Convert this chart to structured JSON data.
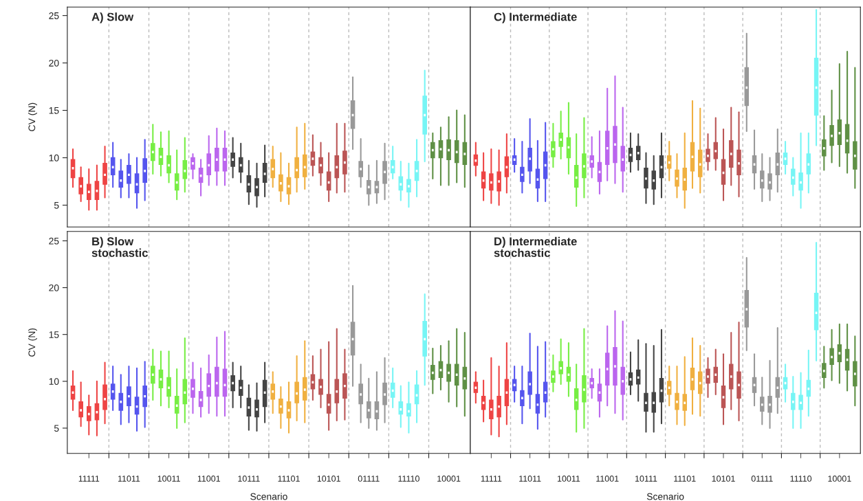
{
  "chart_data": [
    {
      "type": "box",
      "title": "A) Slow",
      "ylabel": "CV (N)",
      "ylim": [
        2.7,
        25.9
      ],
      "yticks": [
        5,
        10,
        15,
        20,
        25
      ],
      "tick_labels": "y",
      "grid": "x",
      "legend": false,
      "categories": [
        null,
        null,
        "11111",
        null,
        null,
        null,
        null,
        "11011",
        null,
        null,
        null,
        null,
        "10011",
        null,
        null,
        null,
        null,
        "11001",
        null,
        null,
        null,
        null,
        "10111",
        null,
        null,
        null,
        null,
        "11101",
        null,
        null,
        null,
        null,
        "10101",
        null,
        null,
        null,
        null,
        "01111",
        null,
        null,
        null,
        null,
        "11110",
        null,
        null,
        null,
        null,
        "10001",
        null,
        null
      ],
      "colors": [
        "#ee4444",
        "#ee4444",
        "#ee4444",
        "#ee4444",
        "#ee4444",
        "#5555ee",
        "#5555ee",
        "#5555ee",
        "#5555ee",
        "#5555ee",
        "#77ee44",
        "#77ee44",
        "#77ee44",
        "#77ee44",
        "#77ee44",
        "#bb66ee",
        "#bb66ee",
        "#bb66ee",
        "#bb66ee",
        "#bb66ee",
        "#444444",
        "#444444",
        "#444444",
        "#444444",
        "#444444",
        "#f0b040",
        "#f0b040",
        "#f0b040",
        "#f0b040",
        "#f0b040",
        "#bb5555",
        "#bb5555",
        "#bb5555",
        "#bb5555",
        "#bb5555",
        "#999999",
        "#999999",
        "#999999",
        "#999999",
        "#999999",
        "#77f5f5",
        "#77f5f5",
        "#77f5f5",
        "#77f5f5",
        "#77f5f5",
        "#5f9045",
        "#5f9045",
        "#5f9045",
        "#5f9045",
        "#5f9045"
      ],
      "boxes": [
        {
          "low": 6.9,
          "q1": 7.9,
          "median": 8.9,
          "q3": 9.8,
          "high": 10.9
        },
        {
          "low": 5.4,
          "q1": 6.2,
          "median": 7.0,
          "q3": 7.9,
          "high": 9.0
        },
        {
          "low": 4.5,
          "q1": 5.6,
          "median": 6.4,
          "q3": 7.2,
          "high": 8.8
        },
        {
          "low": 4.5,
          "q1": 5.6,
          "median": 6.5,
          "q3": 7.5,
          "high": 9.2
        },
        {
          "low": 5.8,
          "q1": 7.2,
          "median": 8.2,
          "q3": 9.4,
          "high": 11.2
        },
        {
          "low": 6.9,
          "q1": 8.2,
          "median": 9.0,
          "q3": 10.0,
          "high": 11.6
        },
        {
          "low": 5.8,
          "q1": 6.9,
          "median": 7.6,
          "q3": 8.6,
          "high": 9.8
        },
        {
          "low": 5.8,
          "q1": 7.3,
          "median": 8.2,
          "q3": 9.2,
          "high": 10.4
        },
        {
          "low": 4.7,
          "q1": 6.3,
          "median": 7.2,
          "q3": 8.3,
          "high": 10.0
        },
        {
          "low": 5.5,
          "q1": 7.4,
          "median": 8.6,
          "q3": 9.9,
          "high": 11.9
        },
        {
          "low": 8.3,
          "q1": 9.7,
          "median": 10.6,
          "q3": 11.5,
          "high": 13.5
        },
        {
          "low": 8.1,
          "q1": 9.3,
          "median": 10.1,
          "q3": 11.0,
          "high": 12.7
        },
        {
          "low": 7.4,
          "q1": 8.4,
          "median": 9.2,
          "q3": 10.2,
          "high": 12.8
        },
        {
          "low": 5.6,
          "q1": 6.6,
          "median": 7.4,
          "q3": 8.3,
          "high": 10.8
        },
        {
          "low": 6.4,
          "q1": 7.8,
          "median": 8.6,
          "q3": 9.7,
          "high": 12.1
        },
        {
          "low": 7.8,
          "q1": 8.8,
          "median": 9.4,
          "q3": 10.0,
          "high": 10.4
        },
        {
          "low": 6.0,
          "q1": 7.4,
          "median": 8.1,
          "q3": 8.9,
          "high": 9.8
        },
        {
          "low": 7.1,
          "q1": 8.2,
          "median": 9.2,
          "q3": 10.4,
          "high": 12.3
        },
        {
          "low": 7.1,
          "q1": 8.6,
          "median": 9.8,
          "q3": 11.0,
          "high": 13.1
        },
        {
          "low": 7.1,
          "q1": 8.6,
          "median": 9.8,
          "q3": 11.0,
          "high": 12.8
        },
        {
          "low": 7.9,
          "q1": 9.1,
          "median": 9.8,
          "q3": 10.5,
          "high": 12.1
        },
        {
          "low": 7.4,
          "q1": 8.5,
          "median": 9.2,
          "q3": 10.0,
          "high": 11.5
        },
        {
          "low": 5.1,
          "q1": 6.4,
          "median": 7.2,
          "q3": 8.1,
          "high": 9.7
        },
        {
          "low": 4.8,
          "q1": 6.0,
          "median": 6.9,
          "q3": 7.8,
          "high": 9.4
        },
        {
          "low": 5.9,
          "q1": 7.4,
          "median": 8.3,
          "q3": 9.4,
          "high": 11.3
        },
        {
          "low": 6.9,
          "q1": 7.9,
          "median": 8.8,
          "q3": 9.8,
          "high": 11.2
        },
        {
          "low": 5.4,
          "q1": 6.5,
          "median": 7.3,
          "q3": 8.2,
          "high": 10.5
        },
        {
          "low": 5.1,
          "q1": 6.2,
          "median": 7.0,
          "q3": 7.9,
          "high": 9.4
        },
        {
          "low": 6.4,
          "q1": 7.9,
          "median": 8.7,
          "q3": 10.0,
          "high": 13.2
        },
        {
          "low": 6.7,
          "q1": 8.0,
          "median": 9.0,
          "q3": 10.3,
          "high": 13.6
        },
        {
          "low": 8.1,
          "q1": 9.2,
          "median": 9.9,
          "q3": 10.6,
          "high": 12.4
        },
        {
          "low": 7.1,
          "q1": 8.4,
          "median": 9.2,
          "q3": 10.0,
          "high": 11.6
        },
        {
          "low": 5.4,
          "q1": 6.6,
          "median": 7.4,
          "q3": 8.5,
          "high": 10.5
        },
        {
          "low": 6.3,
          "q1": 7.9,
          "median": 9.0,
          "q3": 10.2,
          "high": 13.6
        },
        {
          "low": 6.4,
          "q1": 8.3,
          "median": 9.5,
          "q3": 10.7,
          "high": 13.6
        },
        {
          "low": 10.9,
          "q1": 13.1,
          "median": 14.5,
          "q3": 16.0,
          "high": 18.5
        },
        {
          "low": 6.9,
          "q1": 8.0,
          "median": 8.8,
          "q3": 9.6,
          "high": 12.0
        },
        {
          "low": 5.0,
          "q1": 6.2,
          "median": 6.9,
          "q3": 7.6,
          "high": 9.2
        },
        {
          "low": 5.2,
          "q1": 6.3,
          "median": 6.9,
          "q3": 7.5,
          "high": 9.7
        },
        {
          "low": 5.6,
          "q1": 7.3,
          "median": 8.5,
          "q3": 9.6,
          "high": 11.5
        },
        {
          "low": 7.8,
          "q1": 8.4,
          "median": 9.0,
          "q3": 9.7,
          "high": 11.2
        },
        {
          "low": 5.5,
          "q1": 6.6,
          "median": 7.2,
          "q3": 8.0,
          "high": 9.6
        },
        {
          "low": 4.8,
          "q1": 6.4,
          "median": 7.0,
          "q3": 7.7,
          "high": 9.4
        },
        {
          "low": 5.9,
          "q1": 7.6,
          "median": 8.6,
          "q3": 9.6,
          "high": 11.9
        },
        {
          "low": 9.6,
          "q1": 12.5,
          "median": 14.5,
          "q3": 16.5,
          "high": 19.2
        },
        {
          "low": 7.8,
          "q1": 10.0,
          "median": 10.8,
          "q3": 11.6,
          "high": 12.6
        },
        {
          "low": 7.1,
          "q1": 10.0,
          "median": 10.9,
          "q3": 11.8,
          "high": 13.2
        },
        {
          "low": 7.1,
          "q1": 9.8,
          "median": 10.8,
          "q3": 11.9,
          "high": 14.3
        },
        {
          "low": 7.4,
          "q1": 9.5,
          "median": 10.6,
          "q3": 11.8,
          "high": 15.0
        },
        {
          "low": 6.9,
          "q1": 9.3,
          "median": 10.4,
          "q3": 11.6,
          "high": 14.5
        }
      ]
    },
    {
      "type": "box",
      "title": "B) Slow\nstochastic",
      "ylabel": "CV (N)",
      "xlabel": "Scenario",
      "ylim": [
        2.3,
        26.0
      ],
      "yticks": [
        5,
        10,
        15,
        20,
        25
      ],
      "grid": "x",
      "legend": false,
      "categories": [
        null,
        null,
        "11111",
        null,
        null,
        null,
        null,
        "11011",
        null,
        null,
        null,
        null,
        "10011",
        null,
        null,
        null,
        null,
        "11001",
        null,
        null,
        null,
        null,
        "10111",
        null,
        null,
        null,
        null,
        "11101",
        null,
        null,
        null,
        null,
        "10101",
        null,
        null,
        null,
        null,
        "01111",
        null,
        null,
        null,
        null,
        "11110",
        null,
        null,
        null,
        null,
        "10001",
        null,
        null
      ],
      "colors": [
        "#ee4444",
        "#ee4444",
        "#ee4444",
        "#ee4444",
        "#ee4444",
        "#5555ee",
        "#5555ee",
        "#5555ee",
        "#5555ee",
        "#5555ee",
        "#77ee44",
        "#77ee44",
        "#77ee44",
        "#77ee44",
        "#77ee44",
        "#bb66ee",
        "#bb66ee",
        "#bb66ee",
        "#bb66ee",
        "#bb66ee",
        "#444444",
        "#444444",
        "#444444",
        "#444444",
        "#444444",
        "#f0b040",
        "#f0b040",
        "#f0b040",
        "#f0b040",
        "#f0b040",
        "#bb5555",
        "#bb5555",
        "#bb5555",
        "#bb5555",
        "#bb5555",
        "#999999",
        "#999999",
        "#999999",
        "#999999",
        "#999999",
        "#77f5f5",
        "#77f5f5",
        "#77f5f5",
        "#77f5f5",
        "#77f5f5",
        "#5f9045",
        "#5f9045",
        "#5f9045",
        "#5f9045",
        "#5f9045"
      ],
      "boxes": [
        {
          "low": 6.9,
          "q1": 8.1,
          "median": 8.8,
          "q3": 9.5,
          "high": 11.1
        },
        {
          "low": 5.2,
          "q1": 6.2,
          "median": 6.9,
          "q3": 7.8,
          "high": 9.9
        },
        {
          "low": 4.3,
          "q1": 5.8,
          "median": 6.5,
          "q3": 7.3,
          "high": 8.5
        },
        {
          "low": 4.2,
          "q1": 5.9,
          "median": 6.7,
          "q3": 7.6,
          "high": 10.0
        },
        {
          "low": 5.5,
          "q1": 7.0,
          "median": 8.1,
          "q3": 9.6,
          "high": 12.0
        },
        {
          "low": 6.9,
          "q1": 8.1,
          "median": 8.9,
          "q3": 9.7,
          "high": 11.6
        },
        {
          "low": 5.4,
          "q1": 6.9,
          "median": 7.8,
          "q3": 8.7,
          "high": 10.7
        },
        {
          "low": 5.6,
          "q1": 7.4,
          "median": 8.4,
          "q3": 9.4,
          "high": 11.6
        },
        {
          "low": 4.7,
          "q1": 6.5,
          "median": 7.3,
          "q3": 8.3,
          "high": 11.4
        },
        {
          "low": 5.1,
          "q1": 7.3,
          "median": 8.4,
          "q3": 9.5,
          "high": 12.1
        },
        {
          "low": 8.0,
          "q1": 9.8,
          "median": 10.7,
          "q3": 11.6,
          "high": 13.4
        },
        {
          "low": 7.4,
          "q1": 9.3,
          "median": 10.2,
          "q3": 11.2,
          "high": 13.2
        },
        {
          "low": 7.2,
          "q1": 8.4,
          "median": 9.3,
          "q3": 10.4,
          "high": 13.2
        },
        {
          "low": 5.0,
          "q1": 6.6,
          "median": 7.4,
          "q3": 8.4,
          "high": 11.3
        },
        {
          "low": 5.6,
          "q1": 7.6,
          "median": 8.8,
          "q3": 10.2,
          "high": 14.6
        },
        {
          "low": 6.6,
          "q1": 8.3,
          "median": 9.2,
          "q3": 10.2,
          "high": 12.0
        },
        {
          "low": 6.2,
          "q1": 7.3,
          "median": 8.0,
          "q3": 8.9,
          "high": 11.4
        },
        {
          "low": 6.6,
          "q1": 8.4,
          "median": 9.5,
          "q3": 10.8,
          "high": 12.8
        },
        {
          "low": 6.3,
          "q1": 8.4,
          "median": 9.8,
          "q3": 11.5,
          "high": 14.7
        },
        {
          "low": 6.3,
          "q1": 8.4,
          "median": 9.6,
          "q3": 11.3,
          "high": 15.3
        },
        {
          "low": 7.2,
          "q1": 9.0,
          "median": 9.8,
          "q3": 10.6,
          "high": 12.0
        },
        {
          "low": 7.2,
          "q1": 8.5,
          "median": 9.3,
          "q3": 10.1,
          "high": 11.6
        },
        {
          "low": 4.8,
          "q1": 6.3,
          "median": 7.2,
          "q3": 8.2,
          "high": 9.6
        },
        {
          "low": 4.7,
          "q1": 6.2,
          "median": 7.0,
          "q3": 8.0,
          "high": 9.8
        },
        {
          "low": 5.6,
          "q1": 7.3,
          "median": 8.8,
          "q3": 10.1,
          "high": 12.0
        },
        {
          "low": 6.6,
          "q1": 8.1,
          "median": 8.9,
          "q3": 9.7,
          "high": 11.0
        },
        {
          "low": 5.0,
          "q1": 6.6,
          "median": 7.3,
          "q3": 8.1,
          "high": 9.4
        },
        {
          "low": 4.5,
          "q1": 6.1,
          "median": 6.9,
          "q3": 7.8,
          "high": 9.9
        },
        {
          "low": 5.8,
          "q1": 7.7,
          "median": 8.7,
          "q3": 9.9,
          "high": 12.7
        },
        {
          "low": 5.6,
          "q1": 8.0,
          "median": 9.1,
          "q3": 10.4,
          "high": 14.3
        },
        {
          "low": 8.0,
          "q1": 9.2,
          "median": 9.9,
          "q3": 10.7,
          "high": 12.7
        },
        {
          "low": 7.2,
          "q1": 8.6,
          "median": 9.4,
          "q3": 10.2,
          "high": 13.4
        },
        {
          "low": 4.8,
          "q1": 6.6,
          "median": 7.5,
          "q3": 8.6,
          "high": 14.2
        },
        {
          "low": 5.8,
          "q1": 7.7,
          "median": 8.9,
          "q3": 10.2,
          "high": 15.6
        },
        {
          "low": 5.9,
          "q1": 8.2,
          "median": 9.5,
          "q3": 10.8,
          "high": 13.4
        },
        {
          "low": 9.5,
          "q1": 12.8,
          "median": 14.5,
          "q3": 16.3,
          "high": 20.2
        },
        {
          "low": 5.6,
          "q1": 7.6,
          "median": 8.6,
          "q3": 9.7,
          "high": 11.8
        },
        {
          "low": 5.0,
          "q1": 6.1,
          "median": 6.9,
          "q3": 7.8,
          "high": 10.3
        },
        {
          "low": 4.8,
          "q1": 6.0,
          "median": 6.8,
          "q3": 7.8,
          "high": 11.0
        },
        {
          "low": 5.6,
          "q1": 7.5,
          "median": 8.6,
          "q3": 9.8,
          "high": 12.5
        },
        {
          "low": 7.2,
          "q1": 8.3,
          "median": 9.0,
          "q3": 9.8,
          "high": 11.4
        },
        {
          "low": 5.1,
          "q1": 6.5,
          "median": 7.0,
          "q3": 7.8,
          "high": 9.5
        },
        {
          "low": 4.5,
          "q1": 6.3,
          "median": 6.8,
          "q3": 7.6,
          "high": 9.9
        },
        {
          "low": 5.6,
          "q1": 7.6,
          "median": 8.5,
          "q3": 9.6,
          "high": 11.1
        },
        {
          "low": 9.6,
          "q1": 12.7,
          "median": 14.5,
          "q3": 16.4,
          "high": 19.3
        },
        {
          "low": 8.7,
          "q1": 10.2,
          "median": 10.9,
          "q3": 11.7,
          "high": 13.5
        },
        {
          "low": 9.1,
          "q1": 10.4,
          "median": 11.2,
          "q3": 12.1,
          "high": 13.8
        },
        {
          "low": 7.8,
          "q1": 10.0,
          "median": 10.9,
          "q3": 11.8,
          "high": 14.3
        },
        {
          "low": 7.3,
          "q1": 9.6,
          "median": 10.7,
          "q3": 11.8,
          "high": 15.6
        },
        {
          "low": 6.3,
          "q1": 9.2,
          "median": 10.3,
          "q3": 11.5,
          "high": 15.2
        }
      ]
    },
    {
      "type": "box",
      "title": "C) Intermediate",
      "ylim": [
        2.7,
        25.9
      ],
      "yticks": [
        5,
        10,
        15,
        20,
        25
      ],
      "tick_labels": false,
      "grid": "x",
      "legend": false,
      "categories": [
        null,
        null,
        "11111",
        null,
        null,
        null,
        null,
        "11011",
        null,
        null,
        null,
        null,
        "10011",
        null,
        null,
        null,
        null,
        "11001",
        null,
        null,
        null,
        null,
        "10111",
        null,
        null,
        null,
        null,
        "11101",
        null,
        null,
        null,
        null,
        "10101",
        null,
        null,
        null,
        null,
        "01111",
        null,
        null,
        null,
        null,
        "11110",
        null,
        null,
        null,
        null,
        "10001",
        null,
        null
      ],
      "colors": [
        "#ee4444",
        "#ee4444",
        "#ee4444",
        "#ee4444",
        "#ee4444",
        "#5555ee",
        "#5555ee",
        "#5555ee",
        "#5555ee",
        "#5555ee",
        "#77ee44",
        "#77ee44",
        "#77ee44",
        "#77ee44",
        "#77ee44",
        "#bb66ee",
        "#bb66ee",
        "#bb66ee",
        "#bb66ee",
        "#bb66ee",
        "#444444",
        "#444444",
        "#444444",
        "#444444",
        "#444444",
        "#f0b040",
        "#f0b040",
        "#f0b040",
        "#f0b040",
        "#f0b040",
        "#bb5555",
        "#bb5555",
        "#bb5555",
        "#bb5555",
        "#bb5555",
        "#999999",
        "#999999",
        "#999999",
        "#999999",
        "#999999",
        "#77f5f5",
        "#77f5f5",
        "#77f5f5",
        "#77f5f5",
        "#77f5f5",
        "#5f9045",
        "#5f9045",
        "#5f9045",
        "#5f9045",
        "#5f9045"
      ],
      "boxes": [
        {
          "low": 8.1,
          "q1": 9.2,
          "median": 9.7,
          "q3": 10.3,
          "high": 11.6
        },
        {
          "low": 5.5,
          "q1": 6.8,
          "median": 7.6,
          "q3": 8.5,
          "high": 10.5
        },
        {
          "low": 5.2,
          "q1": 6.6,
          "median": 7.4,
          "q3": 8.3,
          "high": 10.9
        },
        {
          "low": 5.0,
          "q1": 6.5,
          "median": 7.5,
          "q3": 8.5,
          "high": 10.8
        },
        {
          "low": 6.3,
          "q1": 8.0,
          "median": 9.0,
          "q3": 10.1,
          "high": 12.5
        },
        {
          "low": 8.5,
          "q1": 9.3,
          "median": 9.8,
          "q3": 10.2,
          "high": 12.0
        },
        {
          "low": 6.3,
          "q1": 7.5,
          "median": 8.2,
          "q3": 9.0,
          "high": 11.7
        },
        {
          "low": 7.3,
          "q1": 8.6,
          "median": 9.9,
          "q3": 11.0,
          "high": 14.1
        },
        {
          "low": 5.4,
          "q1": 6.8,
          "median": 7.7,
          "q3": 8.8,
          "high": 11.8
        },
        {
          "low": 5.4,
          "q1": 7.8,
          "median": 9.2,
          "q3": 10.6,
          "high": 13.7
        },
        {
          "low": 9.0,
          "q1": 10.1,
          "median": 10.9,
          "q3": 11.7,
          "high": 13.6
        },
        {
          "low": 9.9,
          "q1": 11.2,
          "median": 11.9,
          "q3": 12.6,
          "high": 14.9
        },
        {
          "low": 8.3,
          "q1": 10.0,
          "median": 11.1,
          "q3": 12.1,
          "high": 15.8
        },
        {
          "low": 4.9,
          "q1": 6.9,
          "median": 7.9,
          "q3": 9.2,
          "high": 12.5
        },
        {
          "low": 5.8,
          "q1": 7.9,
          "median": 9.1,
          "q3": 10.4,
          "high": 14.2
        },
        {
          "low": 7.9,
          "q1": 9.0,
          "median": 9.6,
          "q3": 10.2,
          "high": 12.2
        },
        {
          "low": 6.2,
          "q1": 7.5,
          "median": 8.5,
          "q3": 9.5,
          "high": 12.8
        },
        {
          "low": 7.6,
          "q1": 9.3,
          "median": 11.0,
          "q3": 12.8,
          "high": 17.3
        },
        {
          "low": 7.3,
          "q1": 9.5,
          "median": 11.4,
          "q3": 13.3,
          "high": 18.6
        },
        {
          "low": 6.4,
          "q1": 8.6,
          "median": 9.8,
          "q3": 11.2,
          "high": 15.3
        },
        {
          "low": 8.5,
          "q1": 9.6,
          "median": 10.3,
          "q3": 11.0,
          "high": 12.6
        },
        {
          "low": 8.7,
          "q1": 9.8,
          "median": 10.5,
          "q3": 11.2,
          "high": 12.5
        },
        {
          "low": 5.2,
          "q1": 6.8,
          "median": 7.8,
          "q3": 8.9,
          "high": 10.5
        },
        {
          "low": 5.1,
          "q1": 6.7,
          "median": 7.6,
          "q3": 8.6,
          "high": 10.2
        },
        {
          "low": 5.8,
          "q1": 7.9,
          "median": 9.0,
          "q3": 10.2,
          "high": 12.6
        },
        {
          "low": 7.6,
          "q1": 8.9,
          "median": 9.5,
          "q3": 10.2,
          "high": 11.7
        },
        {
          "low": 5.8,
          "q1": 7.0,
          "median": 7.8,
          "q3": 8.7,
          "high": 10.4
        },
        {
          "low": 4.7,
          "q1": 6.6,
          "median": 7.7,
          "q3": 8.9,
          "high": 12.6
        },
        {
          "low": 6.8,
          "q1": 8.6,
          "median": 10.1,
          "q3": 11.6,
          "high": 16.0
        },
        {
          "low": 6.3,
          "q1": 8.0,
          "median": 9.3,
          "q3": 10.8,
          "high": 15.2
        },
        {
          "low": 8.7,
          "q1": 9.6,
          "median": 10.2,
          "q3": 10.9,
          "high": 12.5
        },
        {
          "low": 8.7,
          "q1": 9.9,
          "median": 10.7,
          "q3": 11.6,
          "high": 14.2
        },
        {
          "low": 5.5,
          "q1": 7.2,
          "median": 8.4,
          "q3": 9.8,
          "high": 13.0
        },
        {
          "low": 7.1,
          "q1": 9.0,
          "median": 10.4,
          "q3": 11.8,
          "high": 15.3
        },
        {
          "low": 5.9,
          "q1": 8.2,
          "median": 9.4,
          "q3": 10.8,
          "high": 14.8
        },
        {
          "low": 12.8,
          "q1": 15.5,
          "median": 17.4,
          "q3": 19.5,
          "high": 23.1
        },
        {
          "low": 6.7,
          "q1": 8.4,
          "median": 9.3,
          "q3": 10.2,
          "high": 12.9
        },
        {
          "low": 5.4,
          "q1": 6.8,
          "median": 7.6,
          "q3": 8.6,
          "high": 10.4
        },
        {
          "low": 5.5,
          "q1": 6.7,
          "median": 7.4,
          "q3": 8.3,
          "high": 10.0
        },
        {
          "low": 6.4,
          "q1": 8.2,
          "median": 9.3,
          "q3": 10.5,
          "high": 13.0
        },
        {
          "low": 8.3,
          "q1": 9.3,
          "median": 9.9,
          "q3": 10.5,
          "high": 11.7
        },
        {
          "low": 6.0,
          "q1": 7.2,
          "median": 7.9,
          "q3": 8.8,
          "high": 10.0
        },
        {
          "low": 4.7,
          "q1": 6.6,
          "median": 7.4,
          "q3": 8.4,
          "high": 12.6
        },
        {
          "low": 6.3,
          "q1": 8.3,
          "median": 9.3,
          "q3": 10.4,
          "high": 12.6
        },
        {
          "low": 11.3,
          "q1": 14.5,
          "median": 17.4,
          "q3": 20.5,
          "high": 25.6
        },
        {
          "low": 8.7,
          "q1": 10.2,
          "median": 11.0,
          "q3": 11.9,
          "high": 14.4
        },
        {
          "low": 9.5,
          "q1": 11.3,
          "median": 12.3,
          "q3": 13.4,
          "high": 17.1
        },
        {
          "low": 9.1,
          "q1": 11.4,
          "median": 12.6,
          "q3": 14.0,
          "high": 19.9
        },
        {
          "low": 8.4,
          "q1": 10.5,
          "median": 11.8,
          "q3": 13.5,
          "high": 21.2
        },
        {
          "low": 6.8,
          "q1": 8.8,
          "median": 10.2,
          "q3": 11.7,
          "high": 19.5
        }
      ]
    },
    {
      "type": "box",
      "title": "D) Intermediate\nstochastic",
      "xlabel": "Scenario",
      "ylim": [
        2.3,
        26.0
      ],
      "yticks": [
        5,
        10,
        15,
        20,
        25
      ],
      "tick_labels": "x",
      "grid": "x",
      "legend": false,
      "categories": [
        null,
        null,
        "11111",
        null,
        null,
        null,
        null,
        "11011",
        null,
        null,
        null,
        null,
        "10011",
        null,
        null,
        null,
        null,
        "11001",
        null,
        null,
        null,
        null,
        "10111",
        null,
        null,
        null,
        null,
        "11101",
        null,
        null,
        null,
        null,
        "10101",
        null,
        null,
        null,
        null,
        "01111",
        null,
        null,
        null,
        null,
        "11110",
        null,
        null,
        null,
        null,
        "10001",
        null,
        null
      ],
      "colors": [
        "#ee4444",
        "#ee4444",
        "#ee4444",
        "#ee4444",
        "#ee4444",
        "#5555ee",
        "#5555ee",
        "#5555ee",
        "#5555ee",
        "#5555ee",
        "#77ee44",
        "#77ee44",
        "#77ee44",
        "#77ee44",
        "#77ee44",
        "#bb66ee",
        "#bb66ee",
        "#bb66ee",
        "#bb66ee",
        "#bb66ee",
        "#444444",
        "#444444",
        "#444444",
        "#444444",
        "#444444",
        "#f0b040",
        "#f0b040",
        "#f0b040",
        "#f0b040",
        "#f0b040",
        "#bb5555",
        "#bb5555",
        "#bb5555",
        "#bb5555",
        "#bb5555",
        "#999999",
        "#999999",
        "#999999",
        "#999999",
        "#999999",
        "#77f5f5",
        "#77f5f5",
        "#77f5f5",
        "#77f5f5",
        "#77f5f5",
        "#5f9045",
        "#5f9045",
        "#5f9045",
        "#5f9045",
        "#5f9045"
      ],
      "boxes": [
        {
          "low": 7.7,
          "q1": 8.8,
          "median": 9.3,
          "q3": 9.9,
          "high": 11.0
        },
        {
          "low": 5.7,
          "q1": 7.0,
          "median": 7.7,
          "q3": 8.4,
          "high": 10.1
        },
        {
          "low": 4.3,
          "q1": 6.0,
          "median": 7.0,
          "q3": 8.0,
          "high": 12.5
        },
        {
          "low": 4.1,
          "q1": 6.2,
          "median": 7.3,
          "q3": 8.4,
          "high": 11.6
        },
        {
          "low": 5.4,
          "q1": 7.4,
          "median": 8.8,
          "q3": 10.2,
          "high": 14.1
        },
        {
          "low": 7.8,
          "q1": 9.0,
          "median": 9.6,
          "q3": 10.2,
          "high": 11.6
        },
        {
          "low": 5.5,
          "q1": 7.4,
          "median": 8.2,
          "q3": 9.0,
          "high": 11.6
        },
        {
          "low": 7.1,
          "q1": 8.6,
          "median": 9.7,
          "q3": 11.0,
          "high": 15.1
        },
        {
          "low": 4.9,
          "q1": 6.6,
          "median": 7.5,
          "q3": 8.6,
          "high": 13.7
        },
        {
          "low": 6.2,
          "q1": 7.8,
          "median": 8.8,
          "q3": 9.9,
          "high": 14.2
        },
        {
          "low": 8.9,
          "q1": 9.9,
          "median": 10.5,
          "q3": 11.1,
          "high": 12.8
        },
        {
          "low": 9.7,
          "q1": 10.8,
          "median": 11.4,
          "q3": 12.1,
          "high": 14.5
        },
        {
          "low": 8.4,
          "q1": 10.0,
          "median": 10.7,
          "q3": 11.5,
          "high": 14.1
        },
        {
          "low": 4.6,
          "q1": 7.0,
          "median": 8.0,
          "q3": 9.2,
          "high": 11.8
        },
        {
          "low": 5.0,
          "q1": 7.8,
          "median": 9.1,
          "q3": 10.6,
          "high": 15.6
        },
        {
          "low": 8.2,
          "q1": 9.3,
          "median": 9.8,
          "q3": 10.3,
          "high": 11.3
        },
        {
          "low": 6.2,
          "q1": 7.9,
          "median": 8.8,
          "q3": 9.7,
          "high": 11.3
        },
        {
          "low": 7.4,
          "q1": 9.6,
          "median": 11.3,
          "q3": 13.0,
          "high": 15.9
        },
        {
          "low": 6.6,
          "q1": 9.6,
          "median": 11.6,
          "q3": 13.6,
          "high": 17.5
        },
        {
          "low": 5.9,
          "q1": 8.6,
          "median": 10.0,
          "q3": 11.5,
          "high": 16.4
        },
        {
          "low": 8.6,
          "q1": 9.6,
          "median": 10.2,
          "q3": 10.9,
          "high": 13.1
        },
        {
          "low": 7.9,
          "q1": 9.7,
          "median": 10.4,
          "q3": 11.2,
          "high": 14.4
        },
        {
          "low": 4.6,
          "q1": 6.8,
          "median": 7.7,
          "q3": 8.7,
          "high": 14.0
        },
        {
          "low": 4.6,
          "q1": 6.7,
          "median": 7.7,
          "q3": 8.8,
          "high": 13.8
        },
        {
          "low": 5.5,
          "q1": 7.8,
          "median": 9.0,
          "q3": 10.3,
          "high": 15.5
        },
        {
          "low": 7.4,
          "q1": 8.6,
          "median": 9.3,
          "q3": 10.0,
          "high": 11.6
        },
        {
          "low": 5.4,
          "q1": 7.0,
          "median": 7.8,
          "q3": 8.7,
          "high": 11.6
        },
        {
          "low": 5.3,
          "q1": 6.9,
          "median": 7.7,
          "q3": 8.6,
          "high": 12.6
        },
        {
          "low": 6.5,
          "q1": 9.1,
          "median": 10.2,
          "q3": 11.4,
          "high": 14.6
        },
        {
          "low": 6.3,
          "q1": 8.7,
          "median": 9.8,
          "q3": 11.0,
          "high": 13.8
        },
        {
          "low": 8.3,
          "q1": 9.8,
          "median": 10.5,
          "q3": 11.3,
          "high": 12.5
        },
        {
          "low": 8.6,
          "q1": 9.9,
          "median": 10.7,
          "q3": 11.5,
          "high": 13.4
        },
        {
          "low": 5.4,
          "q1": 7.2,
          "median": 8.3,
          "q3": 9.5,
          "high": 12.9
        },
        {
          "low": 7.0,
          "q1": 9.2,
          "median": 10.5,
          "q3": 11.8,
          "high": 15.2
        },
        {
          "low": 5.8,
          "q1": 8.2,
          "median": 9.6,
          "q3": 11.0,
          "high": 16.3
        },
        {
          "low": 13.3,
          "q1": 15.8,
          "median": 17.7,
          "q3": 19.7,
          "high": 23.2
        },
        {
          "low": 7.4,
          "q1": 8.8,
          "median": 9.6,
          "q3": 10.4,
          "high": 12.9
        },
        {
          "low": 5.4,
          "q1": 6.8,
          "median": 7.5,
          "q3": 8.3,
          "high": 10.4
        },
        {
          "low": 5.0,
          "q1": 6.7,
          "median": 7.5,
          "q3": 8.4,
          "high": 12.2
        },
        {
          "low": 6.6,
          "q1": 8.3,
          "median": 9.3,
          "q3": 10.4,
          "high": 15.7
        },
        {
          "low": 7.8,
          "q1": 9.2,
          "median": 9.8,
          "q3": 10.4,
          "high": 11.8
        },
        {
          "low": 5.0,
          "q1": 7.0,
          "median": 7.8,
          "q3": 8.7,
          "high": 10.5
        },
        {
          "low": 5.0,
          "q1": 7.0,
          "median": 7.7,
          "q3": 8.5,
          "high": 10.9
        },
        {
          "low": 6.3,
          "q1": 8.4,
          "median": 9.2,
          "q3": 10.1,
          "high": 13.3
        },
        {
          "low": 12.2,
          "q1": 15.5,
          "median": 17.3,
          "q3": 19.4,
          "high": 24.8
        },
        {
          "low": 9.3,
          "q1": 10.4,
          "median": 11.1,
          "q3": 11.9,
          "high": 13.7
        },
        {
          "low": 10.1,
          "q1": 11.8,
          "median": 12.6,
          "q3": 13.5,
          "high": 15.5
        },
        {
          "low": 9.8,
          "q1": 12.1,
          "median": 13.0,
          "q3": 13.9,
          "high": 16.1
        },
        {
          "low": 9.0,
          "q1": 11.2,
          "median": 12.3,
          "q3": 13.4,
          "high": 16.1
        },
        {
          "low": 7.4,
          "q1": 9.5,
          "median": 10.8,
          "q3": 12.1,
          "high": 14.8
        }
      ]
    }
  ]
}
